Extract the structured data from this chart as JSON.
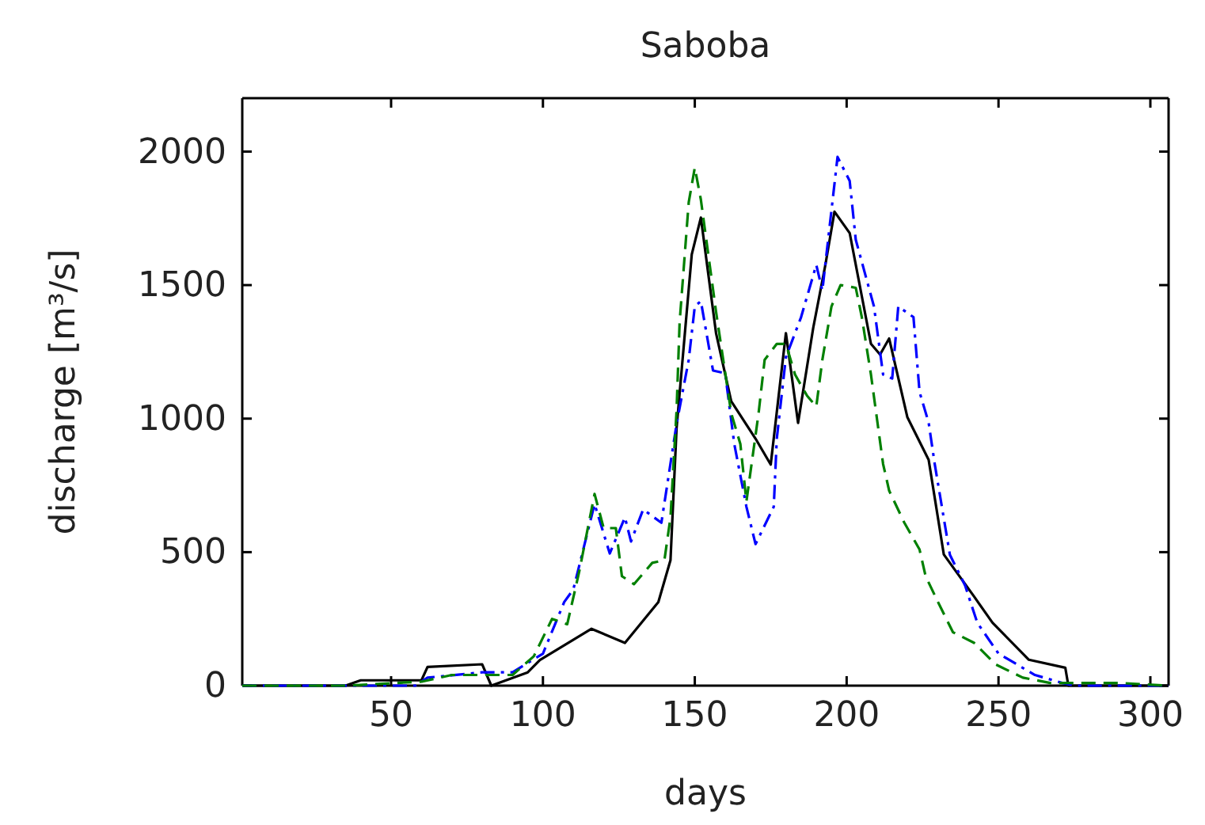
{
  "chart_data": {
    "type": "line",
    "title": "Saboba",
    "xlabel": "days",
    "ylabel": "discharge [m³/s]",
    "xlim": [
      1,
      306
    ],
    "ylim": [
      0,
      2200
    ],
    "xticks": [
      50,
      100,
      150,
      200,
      250,
      300
    ],
    "yticks": [
      0,
      500,
      1000,
      1500,
      2000
    ],
    "grid": false,
    "series": [
      {
        "color": "#000000",
        "line_style": "solid",
        "x": [
          1,
          35,
          40,
          60,
          62,
          80,
          83,
          95,
          99,
          116,
          127,
          138,
          142,
          144,
          149,
          152,
          157,
          162,
          170,
          175,
          180,
          184,
          189,
          193,
          196,
          201,
          208,
          211,
          214,
          220,
          227,
          232,
          242,
          248,
          260,
          272,
          273,
          306
        ],
        "values": [
          0,
          0,
          20,
          20,
          70,
          80,
          0,
          50,
          96,
          213,
          160,
          313,
          470,
          964,
          1615,
          1753,
          1320,
          1065,
          925,
          828,
          1320,
          984,
          1340,
          1576,
          1775,
          1695,
          1280,
          1240,
          1300,
          1005,
          846,
          491,
          333,
          236,
          97,
          67,
          0,
          0
        ]
      },
      {
        "color": "#0000ff",
        "line_style": "dashdot",
        "x": [
          1,
          58,
          62,
          80,
          90,
          100,
          107,
          110,
          117,
          122,
          127,
          129,
          133,
          139,
          144,
          148,
          150,
          152,
          156,
          160,
          163,
          167,
          170,
          176,
          177,
          180,
          185,
          190,
          192,
          197,
          201,
          203,
          209,
          212,
          215,
          217,
          222,
          224,
          227,
          229,
          234,
          239,
          243,
          250,
          262,
          271,
          275,
          306
        ],
        "values": [
          0,
          0,
          30,
          50,
          50,
          120,
          313,
          360,
          680,
          495,
          630,
          540,
          660,
          610,
          980,
          1220,
          1420,
          1440,
          1180,
          1170,
          905,
          670,
          530,
          670,
          925,
          1230,
          1380,
          1576,
          1480,
          1980,
          1890,
          1670,
          1420,
          1165,
          1150,
          1420,
          1380,
          1100,
          985,
          830,
          490,
          375,
          236,
          120,
          40,
          10,
          0,
          0
        ]
      },
      {
        "color": "#008000",
        "line_style": "dashed",
        "x": [
          1,
          35,
          60,
          70,
          80,
          90,
          97,
          103,
          108,
          112,
          117,
          120,
          124,
          126,
          130,
          136,
          140,
          142,
          144,
          145,
          148,
          150,
          152,
          157,
          162,
          165,
          167,
          171,
          173,
          177,
          180,
          183,
          187,
          190,
          192,
          195,
          198,
          203,
          205,
          208,
          212,
          214,
          219,
          224,
          226,
          230,
          235,
          242,
          249,
          258,
          267,
          275,
          290,
          306
        ],
        "values": [
          0,
          0,
          15,
          40,
          40,
          40,
          110,
          250,
          230,
          430,
          718,
          590,
          590,
          410,
          380,
          460,
          470,
          630,
          1030,
          1360,
          1810,
          1940,
          1820,
          1400,
          1020,
          905,
          690,
          1020,
          1220,
          1280,
          1280,
          1165,
          1085,
          1045,
          1220,
          1420,
          1500,
          1490,
          1380,
          1165,
          830,
          730,
          610,
          510,
          410,
          315,
          200,
          160,
          80,
          30,
          10,
          10,
          10,
          0
        ]
      }
    ]
  }
}
